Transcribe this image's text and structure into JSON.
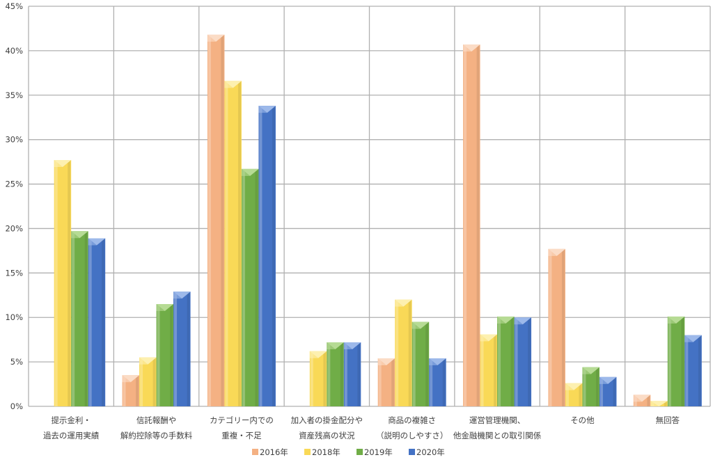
{
  "chart_data": {
    "type": "bar",
    "title": "",
    "xlabel": "",
    "ylabel": "",
    "ylim": [
      0,
      45
    ],
    "y_ticks": [
      0,
      5,
      10,
      15,
      20,
      25,
      30,
      35,
      40,
      45
    ],
    "y_tick_suffix": "%",
    "grid": true,
    "legend_position": "bottom-center",
    "categories": [
      [
        "提示金利・",
        "過去の運用実績"
      ],
      [
        "信託報酬や",
        "解約控除等の手数料"
      ],
      [
        "カテゴリー内での",
        "重複・不足"
      ],
      [
        "加入者の掛金配分や",
        "資産残高の状況"
      ],
      [
        "商品の複雑さ",
        "（説明のしやすさ）"
      ],
      [
        "運営管理機関、",
        "他金融機関との取引関係"
      ],
      [
        "その他"
      ],
      [
        "無回答"
      ]
    ],
    "series": [
      {
        "name": "2016年",
        "color": "#F4B183",
        "light": "#FBDCC6",
        "values": [
          0,
          3.5,
          41.8,
          0,
          5.4,
          40.7,
          17.7,
          1.3
        ]
      },
      {
        "name": "2018年",
        "color": "#F9D957",
        "light": "#FDF0B0",
        "values": [
          27.7,
          5.5,
          36.6,
          6.2,
          12.0,
          8.1,
          2.6,
          0.6
        ]
      },
      {
        "name": "2019年",
        "color": "#70AD47",
        "light": "#B6DB94",
        "values": [
          19.7,
          11.5,
          26.7,
          7.2,
          9.5,
          10.1,
          4.4,
          10.1
        ]
      },
      {
        "name": "2020年",
        "color": "#4472C4",
        "light": "#9DB9EA",
        "values": [
          18.9,
          12.9,
          33.8,
          7.2,
          5.4,
          10.0,
          3.3,
          8.0
        ]
      }
    ]
  }
}
